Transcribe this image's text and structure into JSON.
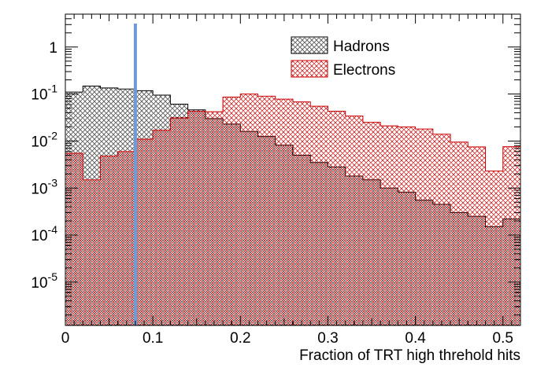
{
  "chart_data": {
    "type": "histogram",
    "xlabel": "Fraction of TRT high threhold hits",
    "ylabel": "",
    "xlim": [
      0,
      0.52
    ],
    "ylim": [
      1.2e-06,
      5
    ],
    "yscale": "log",
    "x_ticks": [
      "0",
      "0.1",
      "0.2",
      "0.3",
      "0.4",
      "0.5"
    ],
    "x_tick_values": [
      0,
      0.1,
      0.2,
      0.3,
      0.4,
      0.5
    ],
    "y_ticks": [
      {
        "value": 1,
        "base": "1",
        "exp": ""
      },
      {
        "value": 0.1,
        "base": "10",
        "exp": "-1"
      },
      {
        "value": 0.01,
        "base": "10",
        "exp": "-2"
      },
      {
        "value": 0.001,
        "base": "10",
        "exp": "-3"
      },
      {
        "value": 0.0001,
        "base": "10",
        "exp": "-4"
      },
      {
        "value": 1e-05,
        "base": "10",
        "exp": "-5"
      }
    ],
    "bin_width": 0.02,
    "bin_edges_start": 0,
    "series": [
      {
        "name": "Hadrons",
        "fill": "circles",
        "color": "#000000",
        "values": [
          0.11,
          0.148,
          0.135,
          0.128,
          0.118,
          0.095,
          0.061,
          0.046,
          0.03,
          0.023,
          0.016,
          0.0125,
          0.0082,
          0.005,
          0.0035,
          0.0028,
          0.0018,
          0.0015,
          0.001,
          0.00082,
          0.00055,
          0.00045,
          0.0003,
          0.00025,
          0.00015,
          0.00022
        ]
      },
      {
        "name": "Electrons",
        "fill": "crosshatch",
        "color": "#cc0000",
        "values": [
          0.0055,
          0.0015,
          0.0048,
          0.006,
          0.011,
          0.017,
          0.031,
          0.043,
          0.042,
          0.086,
          0.1,
          0.09,
          0.078,
          0.068,
          0.055,
          0.043,
          0.034,
          0.025,
          0.021,
          0.02,
          0.018,
          0.014,
          0.0095,
          0.0075,
          0.0023,
          0.0076
        ]
      }
    ],
    "cut_line": {
      "x": 0.08,
      "color": "#6f9ad6"
    },
    "legend": {
      "placement": "top-right"
    },
    "grid": false
  }
}
